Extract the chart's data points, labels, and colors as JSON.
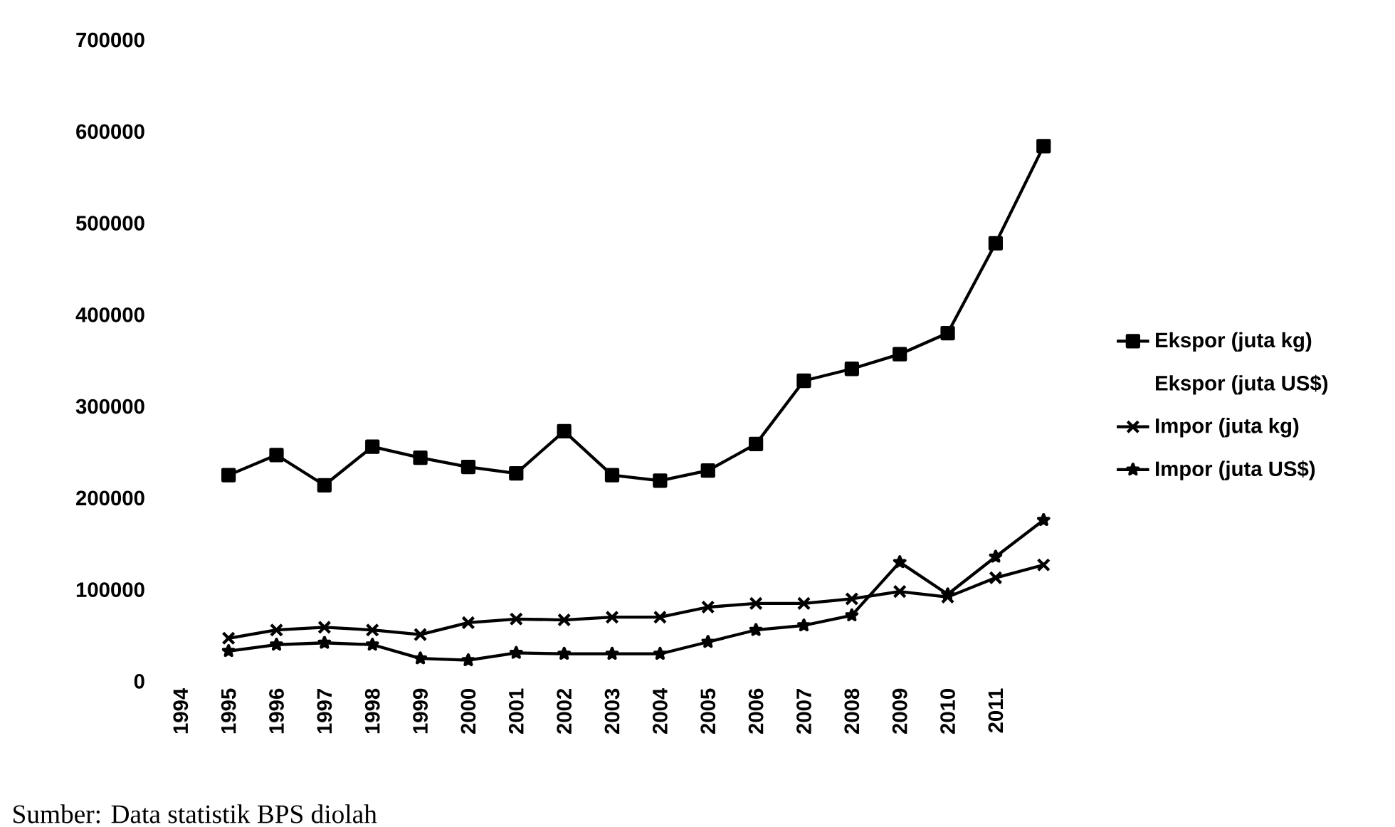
{
  "chart_data": {
    "type": "line",
    "categories": [
      "1994",
      "1995",
      "1996",
      "1997",
      "1998",
      "1999",
      "2000",
      "2001",
      "2002",
      "2003",
      "2004",
      "2005",
      "2006",
      "2007",
      "2008",
      "2009",
      "2010",
      "2011",
      null
    ],
    "series": [
      {
        "name": "Ekspor (juta kg)",
        "color": "#000000",
        "marker": "square",
        "values": [
          null,
          225000,
          247000,
          214000,
          256000,
          244000,
          234000,
          227000,
          273000,
          225000,
          219000,
          230000,
          259000,
          328000,
          341000,
          357000,
          380000,
          478000,
          584000
        ]
      },
      {
        "name": "Ekspor (juta US$)",
        "marker": "none",
        "values": [
          null,
          null,
          null,
          null,
          null,
          null,
          null,
          null,
          null,
          null,
          null,
          null,
          null,
          null,
          null,
          null,
          null,
          null,
          null
        ]
      },
      {
        "name": "Impor (juta kg)",
        "color": "#000000",
        "marker": "cross",
        "values": [
          null,
          47000,
          56000,
          59000,
          56000,
          51000,
          64000,
          68000,
          67000,
          70000,
          70000,
          81000,
          85000,
          85000,
          90000,
          98000,
          92000,
          113000,
          127000
        ]
      },
      {
        "name": "Impor (juta US$)",
        "color": "#000000",
        "marker": "star",
        "values": [
          null,
          33000,
          40000,
          42000,
          40000,
          25000,
          23000,
          31000,
          30000,
          30000,
          30000,
          43000,
          56000,
          61000,
          72000,
          130000,
          95000,
          136000,
          176000
        ]
      }
    ],
    "ylim": [
      0,
      700000
    ],
    "yticks": [
      0,
      100000,
      200000,
      300000,
      400000,
      500000,
      600000,
      700000
    ],
    "grid": false,
    "legend": "right",
    "line_style": "solid",
    "annotations": [
      "Sumber: Data statistik BPS diolah"
    ]
  }
}
